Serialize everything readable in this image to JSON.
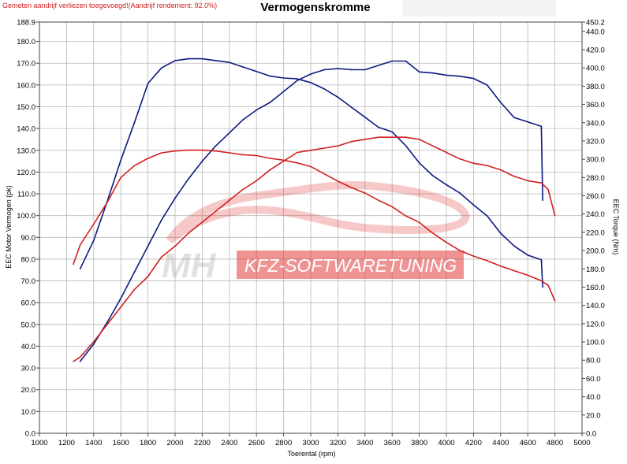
{
  "note": "Gemeten aandrijf verliezen toegevoegd!(Aandrijf rendement: 92.0%)",
  "watermark": {
    "mh": "MH",
    "text": "KFZ-SOFTWARETUNING"
  },
  "colors": {
    "stock": "#d22020",
    "tuned": "#0c1a7e",
    "grid": "#b8b8b8",
    "watermark": "#e23a3a"
  },
  "chart_data": {
    "type": "line",
    "title": "Vermogenskromme",
    "xlabel": "Toerental (rpm)",
    "ylabel": "EEC Motor Vermogen (pk)",
    "y2label": "EEC Torque (Nm)",
    "xlim": [
      1000,
      5000
    ],
    "ylim": [
      0,
      188.9
    ],
    "y2lim": [
      0,
      450.2
    ],
    "grid": true,
    "x_ticks": [
      "1000",
      "1200",
      "1400",
      "1600",
      "1800",
      "2000",
      "2200",
      "2400",
      "2600",
      "2800",
      "3000",
      "3200",
      "3400",
      "3600",
      "3800",
      "4000",
      "4200",
      "4400",
      "4600",
      "4800",
      "5000"
    ],
    "y_ticks": [
      "0.0",
      "10.0",
      "20.0",
      "30.0",
      "40.0",
      "50.0",
      "60.0",
      "70.0",
      "80.0",
      "90.0",
      "100.0",
      "110.0",
      "120.0",
      "130.0",
      "140.0",
      "150.0",
      "160.0",
      "170.0",
      "180.0",
      "188.9"
    ],
    "y2_ticks": [
      "0.0",
      "20.0",
      "40.0",
      "60.0",
      "80.0",
      "100.0",
      "120.0",
      "140.0",
      "160.0",
      "180.0",
      "200.0",
      "220.0",
      "240.0",
      "260.0",
      "280.0",
      "300.0",
      "320.0",
      "340.0",
      "360.0",
      "380.0",
      "400.0",
      "420.0",
      "440.0",
      "450.2"
    ],
    "series": [
      {
        "color_key": "tuned",
        "axis": "left",
        "x": [
          1300,
          1400,
          1500,
          1600,
          1700,
          1800,
          1900,
          2000,
          2100,
          2200,
          2300,
          2400,
          2500,
          2600,
          2700,
          2800,
          2900,
          3000,
          3100,
          3200,
          3300,
          3400,
          3500,
          3600,
          3700,
          3800,
          3900,
          4000,
          4100,
          4200,
          4300,
          4400,
          4500,
          4600,
          4700,
          4710
        ],
        "y": [
          33,
          41,
          51,
          62,
          74,
          86,
          98,
          108,
          117,
          125,
          132,
          138,
          144,
          148.5,
          152,
          157,
          162,
          165,
          167,
          167.5,
          167,
          167,
          169,
          171,
          171,
          166,
          165.5,
          164.5,
          164,
          163,
          160,
          152,
          145,
          143,
          141,
          107
        ]
      },
      {
        "color_key": "tuned",
        "axis": "right",
        "x": [
          1300,
          1400,
          1500,
          1600,
          1700,
          1800,
          1900,
          2000,
          2100,
          2200,
          2300,
          2400,
          2500,
          2600,
          2700,
          2800,
          2900,
          3000,
          3100,
          3200,
          3300,
          3400,
          3500,
          3600,
          3700,
          3800,
          3900,
          4000,
          4100,
          4200,
          4300,
          4400,
          4500,
          4600,
          4700,
          4710
        ],
        "y": [
          180,
          211,
          254,
          299,
          340,
          383,
          400,
          408,
          410,
          410,
          408,
          406,
          401,
          396,
          391,
          389,
          388,
          384,
          377,
          368,
          357,
          346,
          335,
          330,
          315,
          296,
          282,
          272,
          263,
          250,
          238,
          219,
          205,
          195,
          190,
          160
        ]
      },
      {
        "color_key": "stock",
        "axis": "left",
        "x": [
          1250,
          1300,
          1400,
          1500,
          1600,
          1700,
          1800,
          1900,
          2000,
          2100,
          2200,
          2300,
          2400,
          2500,
          2600,
          2700,
          2800,
          2900,
          3000,
          3100,
          3200,
          3300,
          3400,
          3500,
          3600,
          3700,
          3800,
          3900,
          4000,
          4100,
          4200,
          4300,
          4400,
          4500,
          4600,
          4700,
          4750,
          4800
        ],
        "y": [
          33,
          35,
          42,
          50,
          58,
          66,
          72,
          81,
          86,
          92,
          97,
          102,
          107,
          112,
          116,
          121,
          125,
          129,
          130,
          131,
          132,
          134,
          135,
          136,
          136,
          136,
          135,
          132,
          129,
          126,
          124,
          123,
          121,
          118,
          116,
          115,
          112,
          100
        ]
      },
      {
        "color_key": "stock",
        "axis": "right",
        "x": [
          1250,
          1300,
          1400,
          1500,
          1600,
          1700,
          1800,
          1900,
          2000,
          2100,
          2200,
          2300,
          2400,
          2500,
          2600,
          2700,
          2800,
          2900,
          3000,
          3100,
          3200,
          3300,
          3400,
          3500,
          3600,
          3700,
          3800,
          3900,
          4000,
          4100,
          4200,
          4300,
          4400,
          4500,
          4600,
          4700,
          4750,
          4800
        ],
        "y": [
          185,
          206,
          229,
          253,
          280,
          293,
          301,
          307,
          309,
          310,
          310,
          309,
          307,
          305,
          304,
          301,
          299,
          296,
          292,
          284,
          276,
          269,
          263,
          255,
          248,
          238,
          231,
          219,
          209,
          200,
          194,
          189,
          183,
          178,
          173,
          167,
          162,
          145
        ]
      }
    ]
  }
}
